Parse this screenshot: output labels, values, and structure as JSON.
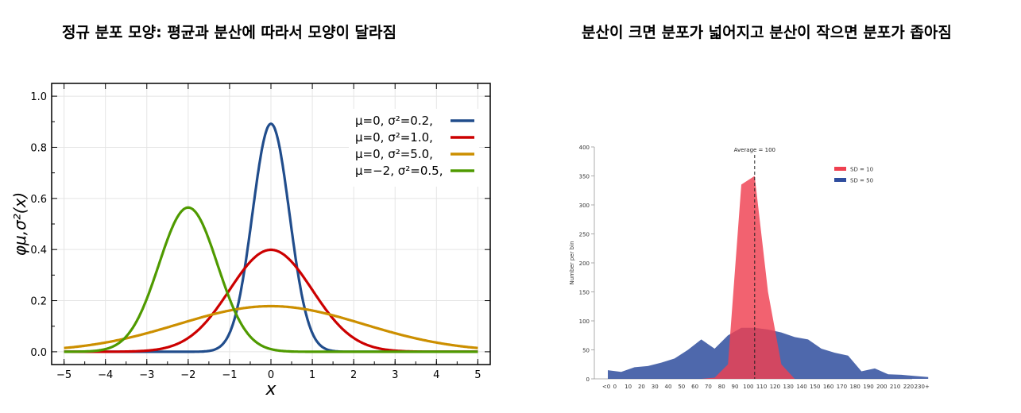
{
  "headings": {
    "left": "정규 분포 모양: 평균과 분산에 따라서 모양이 달라짐",
    "right": "분산이 크면 분포가 넓어지고 분산이 작으면 분포가 좁아짐"
  },
  "chart_data": [
    {
      "type": "line",
      "title": "",
      "xlabel": "x",
      "ylabel": "φμ,σ²(x)",
      "xlim": [
        -5.3,
        5.3
      ],
      "ylim": [
        -0.05,
        1.05
      ],
      "xticks": [
        -5,
        -4,
        -3,
        -2,
        -1,
        0,
        1,
        2,
        3,
        4,
        5
      ],
      "xtick_labels": [
        "−5",
        "−4",
        "−3",
        "−2",
        "−1",
        "0",
        "1",
        "2",
        "3",
        "4",
        "5"
      ],
      "yticks": [
        0.0,
        0.2,
        0.4,
        0.6,
        0.8,
        1.0
      ],
      "ytick_labels": [
        "0.0",
        "0.2",
        "0.4",
        "0.6",
        "0.8",
        "1.0"
      ],
      "grid": true,
      "legend_position": "top-right",
      "series": [
        {
          "name": "μ=0,   σ²=0.2,",
          "mu": 0,
          "variance": 0.2,
          "color": "#214d8c"
        },
        {
          "name": "μ=0,   σ²=1.0,",
          "mu": 0,
          "variance": 1.0,
          "color": "#cc0000"
        },
        {
          "name": "μ=0,   σ²=5.0,",
          "mu": 0,
          "variance": 5.0,
          "color": "#cc8f00"
        },
        {
          "name": "μ=−2, σ²=0.5,",
          "mu": -2,
          "variance": 0.5,
          "color": "#4f9a00"
        }
      ]
    },
    {
      "type": "area",
      "title": "",
      "xlabel": "",
      "ylabel": "Number per bin",
      "ylim": [
        0,
        400
      ],
      "yticks": [
        0,
        50,
        100,
        150,
        200,
        250,
        300,
        350,
        400
      ],
      "categories": [
        "<0",
        "0",
        "10",
        "20",
        "30",
        "40",
        "50",
        "60",
        "70",
        "80",
        "90",
        "100",
        "110",
        "120",
        "130",
        "140",
        "150",
        "160",
        "170",
        "180",
        "190",
        "200",
        "210",
        "220",
        "230+"
      ],
      "legend_position": "top-right",
      "annotation": "Average = 100",
      "annotation_x": "100",
      "series": [
        {
          "name": "SD = 10",
          "color": "#ef4050",
          "values": [
            0,
            0,
            0,
            0,
            0,
            0,
            0,
            0,
            2,
            25,
            335,
            350,
            150,
            25,
            0,
            0,
            0,
            0,
            0,
            0,
            0,
            0,
            0,
            0,
            0
          ]
        },
        {
          "name": "SD = 50",
          "color": "#2f4d9e",
          "values": [
            15,
            12,
            20,
            22,
            28,
            35,
            50,
            68,
            52,
            75,
            88,
            88,
            85,
            80,
            72,
            68,
            52,
            45,
            40,
            13,
            18,
            8,
            7,
            5,
            3
          ]
        }
      ]
    }
  ]
}
